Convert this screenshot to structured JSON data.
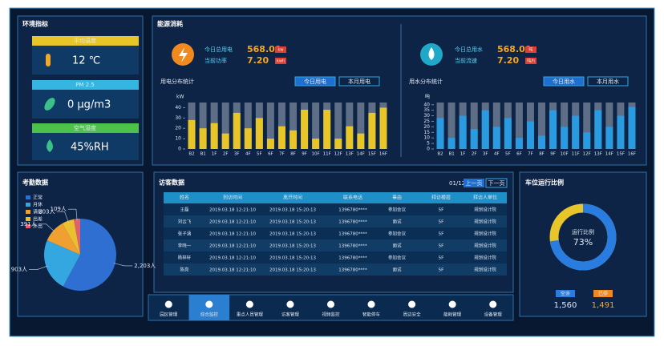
{
  "env": {
    "title": "环境指标",
    "items": [
      {
        "label": "平均温度",
        "value": "12 ℃"
      },
      {
        "label": "PM 2.5",
        "value": "0 μg/m3"
      },
      {
        "label": "空气湿度",
        "value": "45%RH"
      }
    ]
  },
  "energy": {
    "title": "能源消耗",
    "meters": [
      {
        "rows": [
          {
            "label": "今日总用电",
            "value": "568.00",
            "unit": "kw"
          },
          {
            "label": "当前功率",
            "value": "7.20",
            "unit": "kwh"
          }
        ]
      },
      {
        "rows": [
          {
            "label": "今日总用水",
            "value": "568.00",
            "unit": "吨"
          },
          {
            "label": "当前流速",
            "value": "7.20",
            "unit": "吨/h"
          }
        ]
      }
    ]
  },
  "chart_data": [
    {
      "type": "bar",
      "title": "用电分布统计",
      "tabs": [
        "今日用电",
        "本月用电"
      ],
      "y_label": "kW",
      "categories": [
        "B2",
        "B1",
        "1F",
        "2F",
        "3F",
        "4F",
        "5F",
        "6F",
        "7F",
        "8F",
        "9F",
        "10F",
        "11F",
        "12F",
        "13F",
        "14F",
        "15F",
        "16F"
      ],
      "values": [
        28,
        20,
        25,
        15,
        35,
        20,
        30,
        10,
        22,
        18,
        38,
        10,
        38,
        10,
        22,
        15,
        35,
        40
      ],
      "color": "#e8c62a",
      "ylim": [
        0,
        45
      ],
      "yticks": [
        0,
        10,
        20,
        30,
        40
      ]
    },
    {
      "type": "bar",
      "title": "用水分布统计",
      "tabs": [
        "今日用水",
        "本月用水"
      ],
      "y_label": "吨",
      "categories": [
        "B2",
        "B1",
        "1F",
        "2F",
        "3F",
        "4F",
        "5F",
        "6F",
        "7F",
        "8F",
        "9F",
        "10F",
        "11F",
        "12F",
        "13F",
        "14F",
        "15F",
        "16F"
      ],
      "values": [
        28,
        10,
        30,
        18,
        35,
        20,
        28,
        10,
        25,
        12,
        35,
        20,
        30,
        15,
        35,
        20,
        30,
        38
      ],
      "color": "#2a9be0",
      "ylim": [
        0,
        42
      ],
      "yticks": [
        0,
        5,
        10,
        15,
        20,
        25,
        30,
        35,
        40
      ]
    },
    {
      "type": "pie",
      "title": "考勤数据",
      "categories": [
        "正常",
        "月休",
        "请假",
        "出差",
        "外出"
      ],
      "values": [
        2203,
        903,
        391,
        203,
        109
      ],
      "value_labels": [
        "2,203人",
        "903人",
        "391人",
        "203人",
        "109人"
      ],
      "colors": [
        "#2f6fd1",
        "#35a7e0",
        "#f0a030",
        "#e8c030",
        "#e06070"
      ]
    },
    {
      "type": "donut",
      "title": "车位运行比例",
      "label": "运行比例",
      "values": [
        73
      ],
      "value_labels": [
        "73%"
      ],
      "color": "#2a7de0"
    }
  ],
  "visitors": {
    "title": "访客数据",
    "page": "01/12",
    "buttons": [
      "上一页",
      "下一页"
    ],
    "table": {
      "header": [
        "姓名",
        "到访时间",
        "离开时间",
        "联系电话",
        "事由",
        "拜访楼层",
        "拜访人单位"
      ],
      "rows": [
        [
          "王磊",
          "2019.03.18 12:21:10",
          "2019.03.18 15:20:13",
          "1396780****",
          "参加会议",
          "5F",
          "规划设计院"
        ],
        [
          "刘云飞",
          "2019.03.18 12:21:10",
          "2019.03.18 15:20:13",
          "1396780****",
          "面试",
          "5F",
          "规划设计院"
        ],
        [
          "张子涵",
          "2019.03.18 12:21:10",
          "2019.03.18 15:20:13",
          "1396780****",
          "参加会议",
          "5F",
          "规划设计院"
        ],
        [
          "李晓一",
          "2019.03.18 12:21:10",
          "2019.03.18 15:20:13",
          "1396780****",
          "面试",
          "5F",
          "规划设计院"
        ],
        [
          "杨梓轩",
          "2019.03.18 12:21:10",
          "2019.03.18 15:20:13",
          "1396780****",
          "参加会议",
          "5F",
          "规划设计院"
        ],
        [
          "陈亮",
          "2019.03.18 12:21:10",
          "2019.03.18 15:20:13",
          "1396780****",
          "面试",
          "5F",
          "规划设计院"
        ]
      ]
    }
  },
  "parking": {
    "stats": [
      {
        "label": "空余",
        "value": "1,560"
      },
      {
        "label": "已停",
        "value": "1,491"
      }
    ]
  },
  "nav": [
    "园区管理",
    "综合监控",
    "重点人员管理",
    "访客管理",
    "视频监控",
    "智能停车",
    "周边安全",
    "能耗管理",
    "设备管理"
  ]
}
